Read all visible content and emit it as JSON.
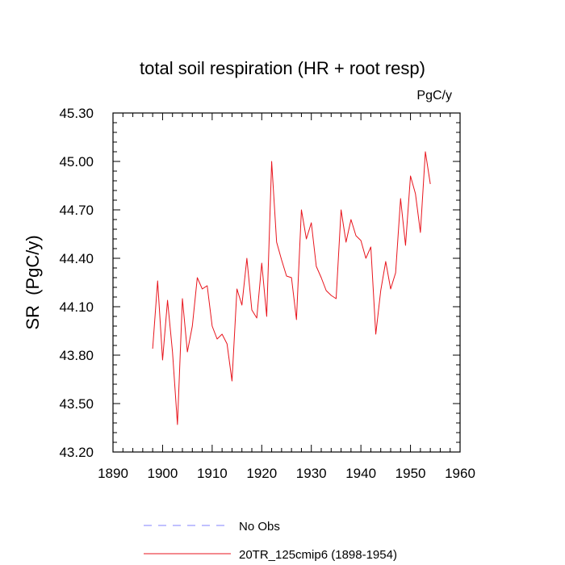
{
  "chart_data": {
    "type": "line",
    "title": "total soil respiration (HR + root resp)",
    "units": "PgC/y",
    "xlabel": "",
    "ylabel": "SR  (PgC/y)",
    "xlim": [
      1890,
      1960
    ],
    "ylim": [
      43.2,
      45.3
    ],
    "x_ticks": [
      1890,
      1900,
      1910,
      1920,
      1930,
      1940,
      1950,
      1960
    ],
    "x_tick_labels": [
      "1890",
      "1900",
      "1910",
      "1920",
      "1930",
      "1940",
      "1950",
      "1960"
    ],
    "y_ticks": [
      43.2,
      43.5,
      43.8,
      44.1,
      44.4,
      44.7,
      45.0,
      45.3
    ],
    "y_tick_labels": [
      "43.20",
      "43.50",
      "43.80",
      "44.10",
      "44.40",
      "44.70",
      "45.00",
      "45.30"
    ],
    "series": [
      {
        "name": "20TR_125cmip6 (1898-1954)",
        "color": "#e8141c",
        "style": "solid",
        "x": [
          1898,
          1899,
          1900,
          1901,
          1902,
          1903,
          1904,
          1905,
          1906,
          1907,
          1908,
          1909,
          1910,
          1911,
          1912,
          1913,
          1914,
          1915,
          1916,
          1917,
          1918,
          1919,
          1920,
          1921,
          1922,
          1923,
          1924,
          1925,
          1926,
          1927,
          1928,
          1929,
          1930,
          1931,
          1932,
          1933,
          1934,
          1935,
          1936,
          1937,
          1938,
          1939,
          1940,
          1941,
          1942,
          1943,
          1944,
          1945,
          1946,
          1947,
          1948,
          1949,
          1950,
          1951,
          1952,
          1953,
          1954
        ],
        "values": [
          43.84,
          44.26,
          43.77,
          44.14,
          43.82,
          43.37,
          44.15,
          43.82,
          43.98,
          44.28,
          44.21,
          44.23,
          43.98,
          43.9,
          43.93,
          43.87,
          43.64,
          44.21,
          44.11,
          44.4,
          44.08,
          44.03,
          44.37,
          44.04,
          45.0,
          44.5,
          44.39,
          44.29,
          44.28,
          44.02,
          44.7,
          44.52,
          44.62,
          44.35,
          44.28,
          44.2,
          44.17,
          44.15,
          44.7,
          44.5,
          44.64,
          44.54,
          44.51,
          44.4,
          44.47,
          43.93,
          44.2,
          44.38,
          44.21,
          44.31,
          44.77,
          44.48,
          44.91,
          44.8,
          44.56,
          45.06,
          44.86
        ]
      },
      {
        "name": "No Obs",
        "color": "#8080ff",
        "style": "dashed",
        "x": [],
        "values": []
      }
    ],
    "legend": [
      {
        "label": "No Obs",
        "color": "#8080ff",
        "style": "dashed"
      },
      {
        "label": "20TR_125cmip6 (1898-1954)",
        "color": "#e8141c",
        "style": "solid"
      }
    ],
    "legend_position": "bottom",
    "grid": false
  }
}
